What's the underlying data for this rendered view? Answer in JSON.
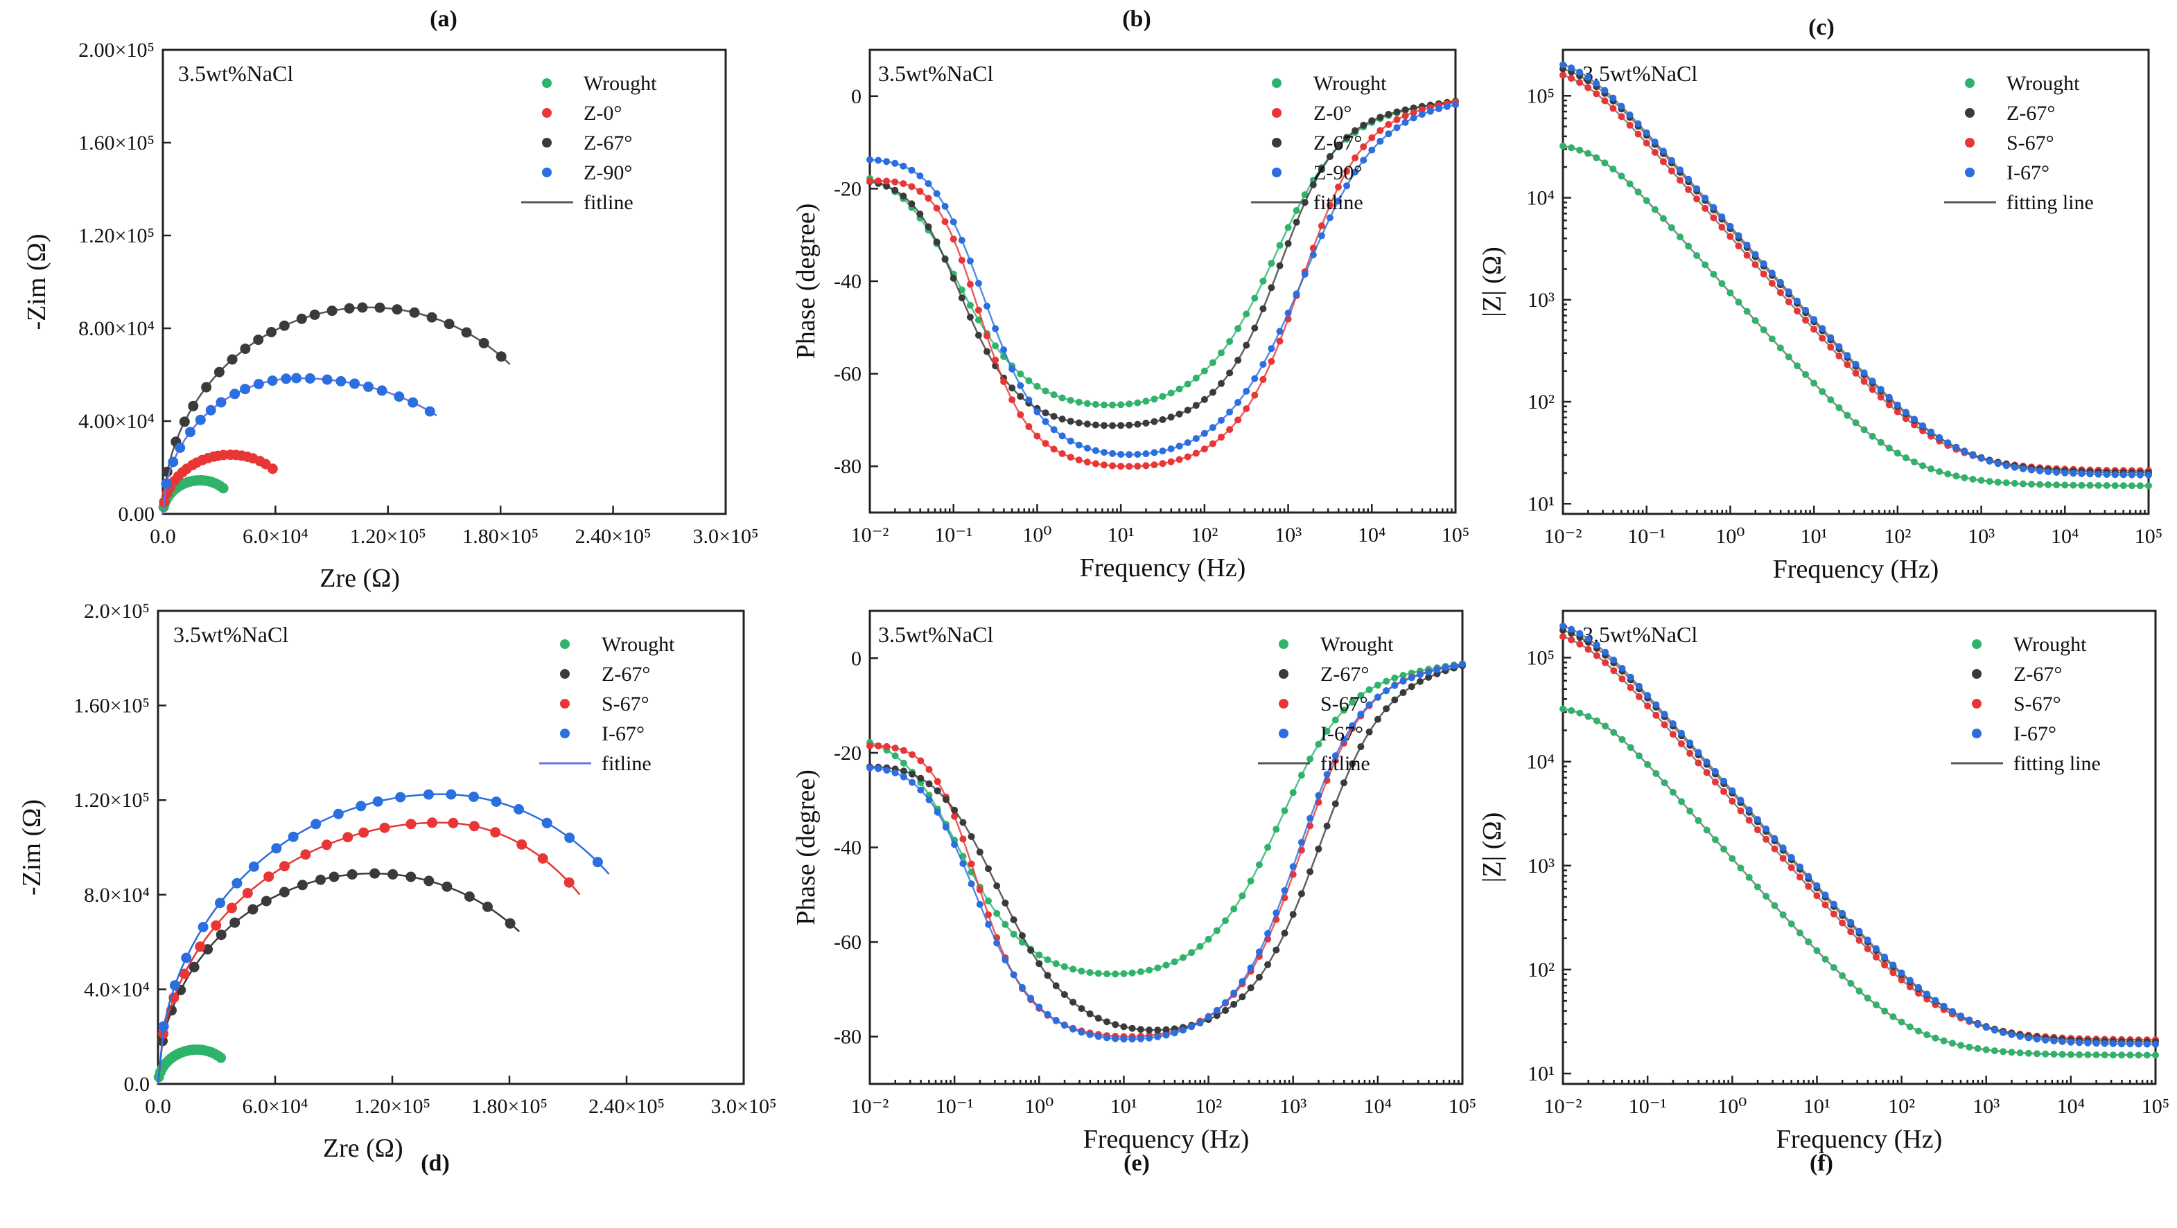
{
  "figure": {
    "panel_labels": [
      "(a)",
      "(b)",
      "(c)",
      "(d)",
      "(e)",
      "(f)"
    ]
  },
  "colors": {
    "Wrought": "#2fb36b",
    "Z-0°": "#e83535",
    "Z-67°": "#3a3a3a",
    "Z-90°": "#2a6ee0",
    "S-67°": "#e83535",
    "I-67°": "#2a6ee0",
    "fit_gray": "#555555",
    "fit_blue": "#6f6fe8"
  },
  "chart_data": [
    {
      "id": "a",
      "type": "scatter",
      "subtype": "nyquist",
      "label": "(a)",
      "title": "3.5wt%NaCl",
      "xlabel": "Zre (Ω)",
      "ylabel": "-Zim (Ω)",
      "xlim": [
        0,
        300000
      ],
      "ylim": [
        0,
        200000
      ],
      "xticks": [
        0,
        60000,
        120000,
        180000,
        240000,
        300000
      ],
      "xtick_labels": [
        "0.0",
        "6.0×10⁴",
        "1.20×10⁵",
        "1.80×10⁵",
        "2.40×10⁵",
        "3.0×10⁵"
      ],
      "yticks": [
        0,
        40000,
        80000,
        120000,
        160000,
        200000
      ],
      "ytick_labels": [
        "0.00",
        "4.00×10⁴",
        "8.00×10⁴",
        "1.20×10⁵",
        "1.60×10⁵",
        "2.00×10⁵"
      ],
      "legend": [
        "Wrought",
        "Z-0°",
        "Z-67°",
        "Z-90°",
        "fitline"
      ],
      "legend_fit_color": "#555555",
      "series": [
        {
          "name": "Wrought",
          "color": "#2fb36b",
          "arc": {
            "xmax": 33000,
            "ypeak": 14500,
            "xpeak": 20000,
            "n": 26
          }
        },
        {
          "name": "Z-0°",
          "color": "#e83535",
          "arc": {
            "xmax": 60000,
            "ypeak": 25500,
            "xpeak": 36000,
            "n": 22
          }
        },
        {
          "name": "Z-67°",
          "color": "#3a3a3a",
          "arc": {
            "xmax": 185000,
            "ypeak": 89000,
            "xpeak": 110000,
            "n": 24
          }
        },
        {
          "name": "Z-90°",
          "color": "#2a6ee0",
          "arc": {
            "xmax": 146000,
            "ypeak": 58500,
            "xpeak": 72000,
            "n": 22
          },
          "fit_color": "#6f6fe8"
        }
      ]
    },
    {
      "id": "b",
      "type": "scatter",
      "subtype": "bode-phase",
      "label": "(b)",
      "title": "3.5wt%NaCl",
      "xlabel": "Frequency (Hz)",
      "ylabel": "Phase (degree)",
      "xlog": true,
      "xlim": [
        -2,
        5
      ],
      "ylim": [
        10,
        -90
      ],
      "yticks": [
        0,
        -20,
        -40,
        -60,
        -80
      ],
      "legend": [
        "Wrought",
        "Z-0°",
        "Z-67°",
        "Z-90°",
        "fitline"
      ],
      "legend_fit_color": "#555555",
      "series": [
        {
          "name": "Wrought",
          "color": "#2fb36b",
          "phase": {
            "peak": -67.5,
            "center": 0.85,
            "lw": 0.85,
            "rw": 0.95,
            "start": -15,
            "end": -1
          }
        },
        {
          "name": "Z-0°",
          "color": "#3a3a3a",
          "phase": {
            "peak": -71.5,
            "center": 0.9,
            "lw": 0.7,
            "rw": 0.8,
            "start": -17,
            "end": -1
          }
        },
        {
          "name": "Z-67°",
          "color": "#e83535",
          "phase": {
            "peak": -80.3,
            "center": 1.15,
            "lw": 0.6,
            "rw": 0.85,
            "start": -18,
            "end": -1
          }
        },
        {
          "name": "Z-90°",
          "color": "#2a6ee0",
          "phase": {
            "peak": -78.3,
            "center": 1.2,
            "lw": 0.72,
            "rw": 1.05,
            "start": -13,
            "end": -1
          }
        }
      ]
    },
    {
      "id": "c",
      "type": "scatter",
      "subtype": "bode-modulus",
      "label": "(c)",
      "title": "3.5wt%NaCl",
      "xlabel": "Frequency (Hz)",
      "ylabel": "|Z| (Ω)",
      "xlog": true,
      "ylog": true,
      "xlim": [
        -2,
        5
      ],
      "ylim": [
        0.9,
        5.45
      ],
      "legend": [
        "Wrought",
        "Z-67°",
        "S-67°",
        "I-67°",
        "fitting line"
      ],
      "legend_fit_color": "#555555",
      "series": [
        {
          "name": "Wrought",
          "color": "#2fb36b",
          "modulus": {
            "r0": 35000,
            "rs": 15,
            "fc": 0.025
          }
        },
        {
          "name": "Z-67°",
          "color": "#e83535",
          "modulus": {
            "r0": 190000,
            "rs": 21,
            "fc": 0.016
          }
        },
        {
          "name": "S-67°",
          "color": "#3a3a3a",
          "modulus": {
            "r0": 215000,
            "rs": 20,
            "fc": 0.017
          }
        },
        {
          "name": "I-67°",
          "color": "#2a6ee0",
          "modulus": {
            "r0": 240000,
            "rs": 19,
            "fc": 0.016
          }
        }
      ]
    },
    {
      "id": "d",
      "type": "scatter",
      "subtype": "nyquist",
      "label": "(d)",
      "title": "3.5wt%NaCl",
      "xlabel": "Zre (Ω)",
      "ylabel": "-Zim (Ω)",
      "xlim": [
        0,
        300000
      ],
      "ylim": [
        0,
        200000
      ],
      "xticks": [
        0,
        60000,
        120000,
        180000,
        240000,
        300000
      ],
      "xtick_labels": [
        "0.0",
        "6.0×10⁴",
        "1.20×10⁵",
        "1.80×10⁵",
        "2.40×10⁵",
        "3.0×10⁵"
      ],
      "yticks": [
        0,
        40000,
        80000,
        120000,
        160000,
        200000
      ],
      "ytick_labels": [
        "0.0",
        "4.0×10⁴",
        "8.0×10⁴",
        "1.20×10⁵",
        "1.60×10⁵",
        "2.0×10⁵"
      ],
      "legend": [
        "Wrought",
        "Z-67°",
        "S-67°",
        "I-67°",
        "fitline"
      ],
      "legend_fit_color": "#6f6fe8",
      "series": [
        {
          "name": "Wrought",
          "color": "#2fb36b",
          "arc": {
            "xmax": 33000,
            "ypeak": 14500,
            "xpeak": 20000,
            "n": 24
          }
        },
        {
          "name": "Z-67°",
          "color": "#3a3a3a",
          "arc": {
            "xmax": 185000,
            "ypeak": 89000,
            "xpeak": 110000,
            "n": 22
          }
        },
        {
          "name": "S-67°",
          "color": "#e83535",
          "arc": {
            "xmax": 216000,
            "ypeak": 110500,
            "xpeak": 145000,
            "n": 22
          }
        },
        {
          "name": "I-67°",
          "color": "#2a6ee0",
          "arc": {
            "xmax": 231000,
            "ypeak": 122500,
            "xpeak": 145000,
            "n": 22
          }
        }
      ]
    },
    {
      "id": "e",
      "type": "scatter",
      "subtype": "bode-phase",
      "label": "(e)",
      "title": "3.5wt%NaCl",
      "xlabel": "Frequency (Hz)",
      "ylabel": "Phase (degree)",
      "xlog": true,
      "xlim": [
        -2,
        5
      ],
      "ylim": [
        10,
        -90
      ],
      "yticks": [
        0,
        -20,
        -40,
        -60,
        -80
      ],
      "legend": [
        "Wrought",
        "Z-67°",
        "S-67°",
        "I-67°",
        "fitline"
      ],
      "legend_fit_color": "#555555",
      "series": [
        {
          "name": "Wrought",
          "color": "#2fb36b",
          "phase": {
            "peak": -67.5,
            "center": 0.85,
            "lw": 0.85,
            "rw": 0.95,
            "start": -15,
            "end": -1
          }
        },
        {
          "name": "Z-67°",
          "color": "#e83535",
          "phase": {
            "peak": -80.3,
            "center": 1.1,
            "lw": 0.62,
            "rw": 0.85,
            "start": -18,
            "end": -1
          }
        },
        {
          "name": "S-67°",
          "color": "#3a3a3a",
          "phase": {
            "peak": -79.5,
            "center": 1.3,
            "lw": 0.9,
            "rw": 0.9,
            "start": -22,
            "end": -1
          }
        },
        {
          "name": "I-67°",
          "color": "#2a6ee0",
          "phase": {
            "peak": -81,
            "center": 1.05,
            "lw": 0.75,
            "rw": 0.85,
            "start": -22,
            "end": -1
          }
        }
      ]
    },
    {
      "id": "f",
      "type": "scatter",
      "subtype": "bode-modulus",
      "label": "(f)",
      "title": "3.5wt%NaCl",
      "xlabel": "Frequency (Hz)",
      "ylabel": "|Z| (Ω)",
      "xlog": true,
      "ylog": true,
      "xlim": [
        -2,
        5
      ],
      "ylim": [
        0.9,
        5.45
      ],
      "legend": [
        "Wrought",
        "Z-67°",
        "S-67°",
        "I-67°",
        "fitting line"
      ],
      "legend_fit_color": "#555555",
      "series": [
        {
          "name": "Wrought",
          "color": "#2fb36b",
          "modulus": {
            "r0": 35000,
            "rs": 15,
            "fc": 0.025
          }
        },
        {
          "name": "Z-67°",
          "color": "#e83535",
          "modulus": {
            "r0": 190000,
            "rs": 21,
            "fc": 0.016
          }
        },
        {
          "name": "S-67°",
          "color": "#3a3a3a",
          "modulus": {
            "r0": 215000,
            "rs": 20,
            "fc": 0.017
          }
        },
        {
          "name": "I-67°",
          "color": "#2a6ee0",
          "modulus": {
            "r0": 240000,
            "rs": 19,
            "fc": 0.016
          }
        }
      ]
    }
  ]
}
